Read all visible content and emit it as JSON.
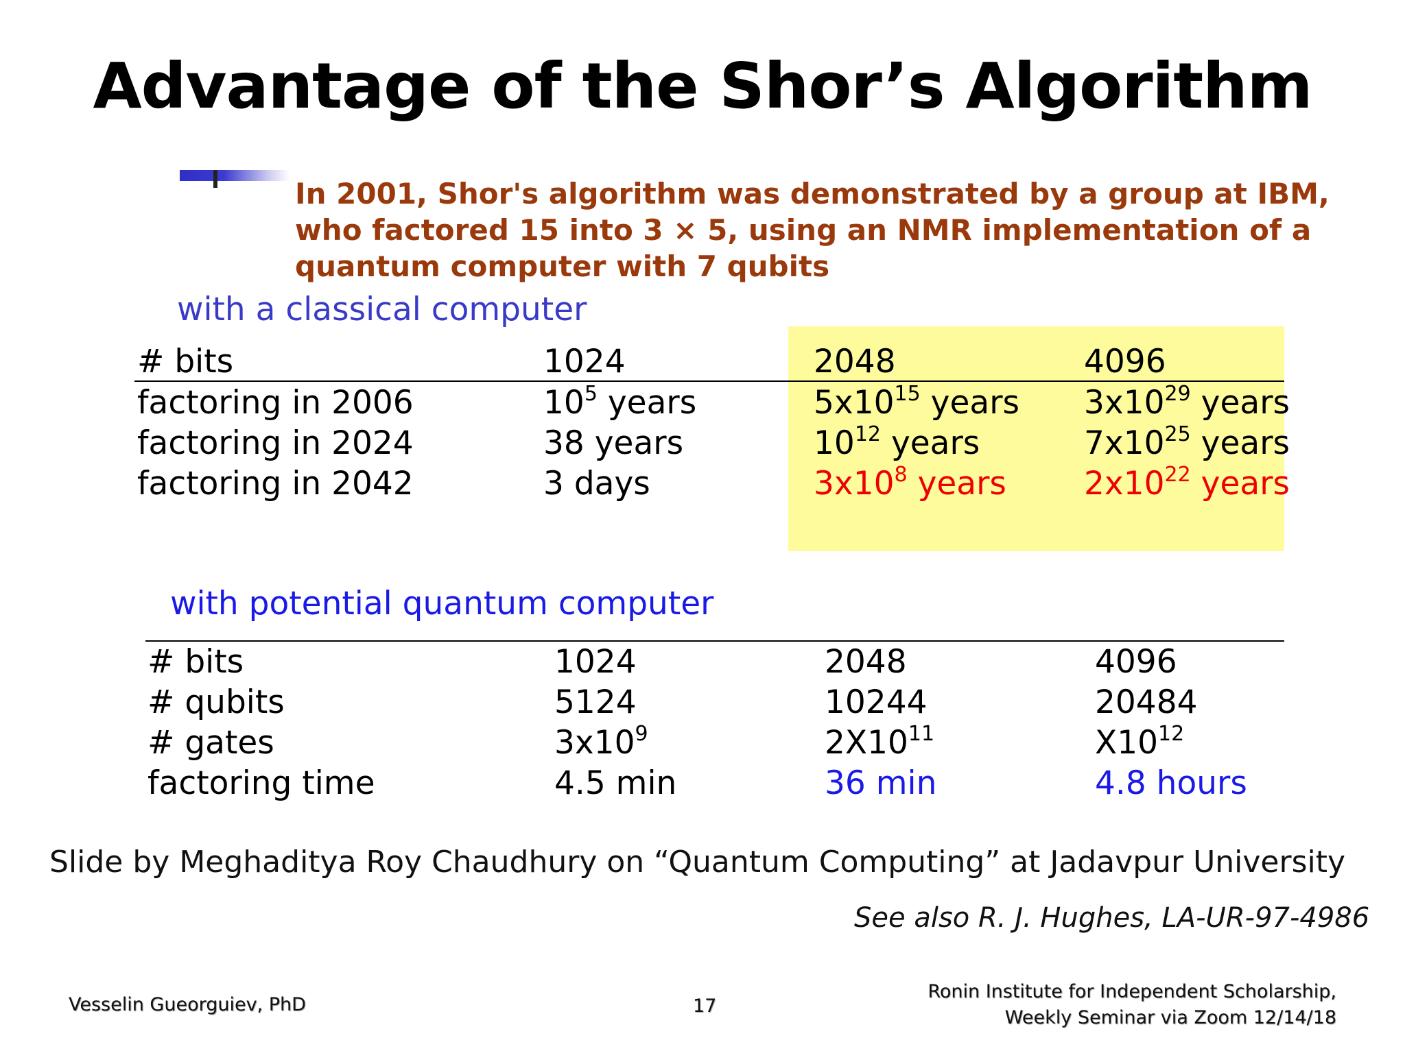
{
  "slide": {
    "title": "Advantage of the Shor’s Algorithm",
    "ibm_note": "In 2001, Shor's algorithm was demonstrated by a group at IBM, who factored 15 into 3 × 5, using an NMR implementation of a quantum computer with 7 qubits",
    "classical_label": "with a classical computer",
    "quantum_label": "with potential quantum computer",
    "highlight_color": "#fdfb9c",
    "credit": "Slide by Meghaditya Roy Chaudhury  on “Quantum Computing” at Jadavpur University",
    "see_also": "See also R. J. Hughes, LA-UR-97-4986"
  },
  "classical_table": {
    "header": [
      "# bits",
      "1024",
      "2048",
      "4096"
    ],
    "rows": [
      [
        {
          "text": "factoring in 2006"
        },
        {
          "base": "10",
          "exp": "5",
          "unit": " years"
        },
        {
          "base": "5x10",
          "exp": "15",
          "unit": " years"
        },
        {
          "base": "3x10",
          "exp": "29",
          "unit": " years"
        }
      ],
      [
        {
          "text": "factoring in 2024"
        },
        {
          "text": "38 years"
        },
        {
          "base": "10",
          "exp": "12",
          "unit": " years"
        },
        {
          "base": "7x10",
          "exp": "25",
          "unit": " years"
        }
      ],
      [
        {
          "text": "factoring in 2042"
        },
        {
          "text": "3 days"
        },
        {
          "base": "3x10",
          "exp": "8",
          "unit": " years",
          "color": "red"
        },
        {
          "base": "2x10",
          "exp": "22",
          "unit": " years",
          "color": "red"
        }
      ]
    ]
  },
  "quantum_table": {
    "rows": [
      [
        {
          "text": "# bits"
        },
        {
          "text": "1024"
        },
        {
          "text": "2048"
        },
        {
          "text": "4096"
        }
      ],
      [
        {
          "text": "# qubits"
        },
        {
          "text": "5124"
        },
        {
          "text": "10244"
        },
        {
          "text": "20484"
        }
      ],
      [
        {
          "text": "# gates"
        },
        {
          "base": "3x10",
          "exp": "9"
        },
        {
          "base": "2X10",
          "exp": "11"
        },
        {
          "base": "X10",
          "exp": "12"
        }
      ],
      [
        {
          "text": "factoring time"
        },
        {
          "text": "4.5 min"
        },
        {
          "text": "36 min",
          "color": "blue"
        },
        {
          "text": "4.8 hours",
          "color": "blue"
        }
      ]
    ]
  },
  "footer": {
    "author": "Vesselin Gueorguiev, PhD",
    "page": "17",
    "institute_line1": "Ronin Institute for Independent Scholarship,",
    "institute_line2": "Weekly Seminar via Zoom  12/14/18"
  }
}
